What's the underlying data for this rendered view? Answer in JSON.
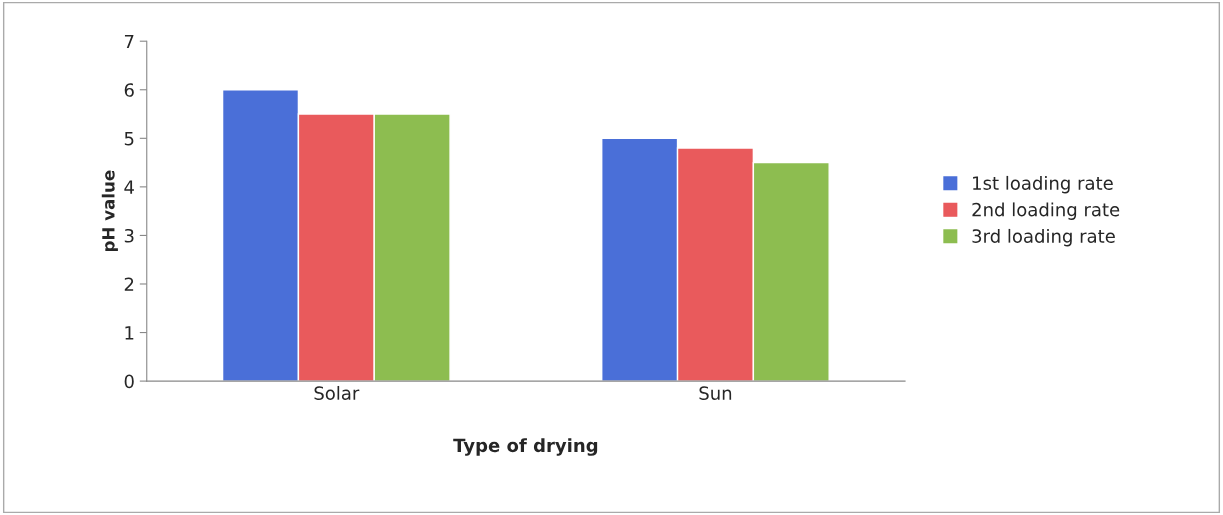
{
  "chart_data": {
    "type": "bar",
    "xlabel": "Type of drying",
    "ylabel": "pH value",
    "categories": [
      "Solar",
      "Sun"
    ],
    "series": [
      {
        "name": "1st loading rate",
        "color": "#4a6fd8",
        "values": [
          6,
          5
        ]
      },
      {
        "name": "2nd loading rate",
        "color": "#e95a5c",
        "values": [
          5.5,
          4.8
        ]
      },
      {
        "name": "3rd loading rate",
        "color": "#8dbd50",
        "values": [
          5.5,
          4.5
        ]
      }
    ],
    "ylim": [
      0,
      7
    ],
    "yticks": [
      0,
      1,
      2,
      3,
      4,
      5,
      6,
      7
    ],
    "grid": false,
    "legend": "right"
  }
}
